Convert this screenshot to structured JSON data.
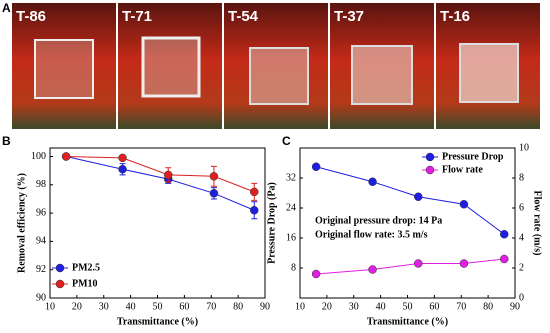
{
  "photos": {
    "panel_label": "A",
    "captions": [
      "T-86",
      "T-71",
      "T-54",
      "T-37",
      "T-16"
    ]
  },
  "chart_data": [
    {
      "type": "line",
      "panel_label": "B",
      "x_label": "Transmittance (%)",
      "y_label": "Removal efficiency (%)",
      "xlim": [
        10,
        90
      ],
      "xticks": [
        10,
        20,
        30,
        40,
        50,
        60,
        70,
        80,
        90
      ],
      "ylim": [
        90,
        100.6
      ],
      "yticks": [
        90,
        92,
        94,
        96,
        98,
        100
      ],
      "legend": "lower left",
      "series": [
        {
          "name": "PM2.5",
          "color": "#1f1fe0",
          "x": [
            16,
            37,
            54,
            71,
            86
          ],
          "values": [
            100,
            99.1,
            98.4,
            97.4,
            96.2
          ],
          "errors": [
            0,
            0.4,
            0.3,
            0.4,
            0.6
          ]
        },
        {
          "name": "PM10",
          "color": "#e02020",
          "x": [
            16,
            37,
            54,
            71,
            86
          ],
          "values": [
            100,
            99.9,
            98.7,
            98.6,
            97.5
          ],
          "errors": [
            0,
            0,
            0.5,
            0.7,
            0.6
          ]
        }
      ]
    },
    {
      "type": "line",
      "panel_label": "C",
      "x_label": "Transmittance (%)",
      "y_label": "Pressure Drop (Pa)",
      "y2_label": "Flow rate (m/s)",
      "xlim": [
        10,
        90
      ],
      "xticks": [
        10,
        20,
        30,
        40,
        50,
        60,
        70,
        80,
        90
      ],
      "ylim": [
        0,
        40
      ],
      "yticks": [
        8,
        16,
        24,
        32
      ],
      "y2lim": [
        0,
        10
      ],
      "y2ticks": [
        0,
        2,
        4,
        6,
        8,
        10
      ],
      "legend": "upper right",
      "annotations": [
        "Original pressure drop: 14 Pa",
        "Original flow rate: 3.5 m/s"
      ],
      "series": [
        {
          "name": "Pressure Drop",
          "color": "#1f1fe0",
          "x": [
            16,
            37,
            54,
            71,
            86
          ],
          "values": [
            35,
            31,
            27,
            25,
            17
          ]
        },
        {
          "name": "Flow rate",
          "color": "#e020e0",
          "axis": "y2",
          "x": [
            16,
            37,
            54,
            71,
            86
          ],
          "values": [
            1.6,
            1.9,
            2.3,
            2.3,
            2.6
          ]
        }
      ]
    }
  ]
}
